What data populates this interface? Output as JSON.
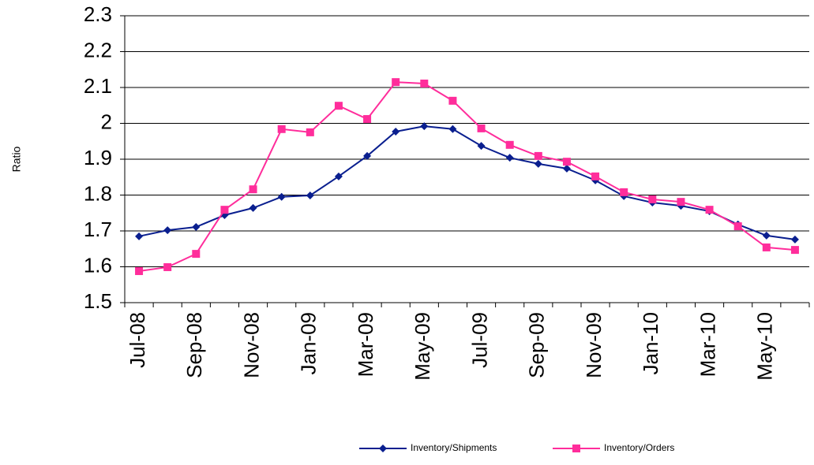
{
  "chart_data": {
    "type": "line",
    "y_label": "Ratio",
    "categories": [
      "Jul-08",
      null,
      "Sep-08",
      null,
      "Nov-08",
      null,
      "Jan-09",
      null,
      "Mar-09",
      null,
      "May-09",
      null,
      "Jul-09",
      null,
      "Sep-09",
      null,
      "Nov-09",
      null,
      "Jan-10",
      null,
      "Mar-10",
      null,
      "May-10",
      null
    ],
    "series": [
      {
        "name": "Inventory/Shipments",
        "color": "#0a1f8f",
        "marker": "diamond",
        "values": [
          1.685,
          1.702,
          1.711,
          1.744,
          1.764,
          1.795,
          1.799,
          1.852,
          1.909,
          1.977,
          1.992,
          1.984,
          1.937,
          1.904,
          1.887,
          1.874,
          1.841,
          1.797,
          1.779,
          1.77,
          1.755,
          1.718,
          1.687,
          1.676
        ]
      },
      {
        "name": "Inventory/Orders",
        "color": "#ff2d9b",
        "marker": "square",
        "values": [
          1.588,
          1.599,
          1.636,
          1.759,
          1.816,
          1.984,
          1.975,
          2.049,
          2.012,
          2.115,
          2.111,
          2.063,
          1.986,
          1.94,
          1.909,
          1.893,
          1.852,
          1.808,
          1.788,
          1.781,
          1.759,
          1.713,
          1.654,
          1.647
        ]
      }
    ],
    "ylim": [
      1.5,
      2.3
    ],
    "yticks": [
      1.5,
      1.6,
      1.7,
      1.8,
      1.9,
      2,
      2.1,
      2.2,
      2.3
    ],
    "grid": true,
    "legend": "bottom"
  }
}
